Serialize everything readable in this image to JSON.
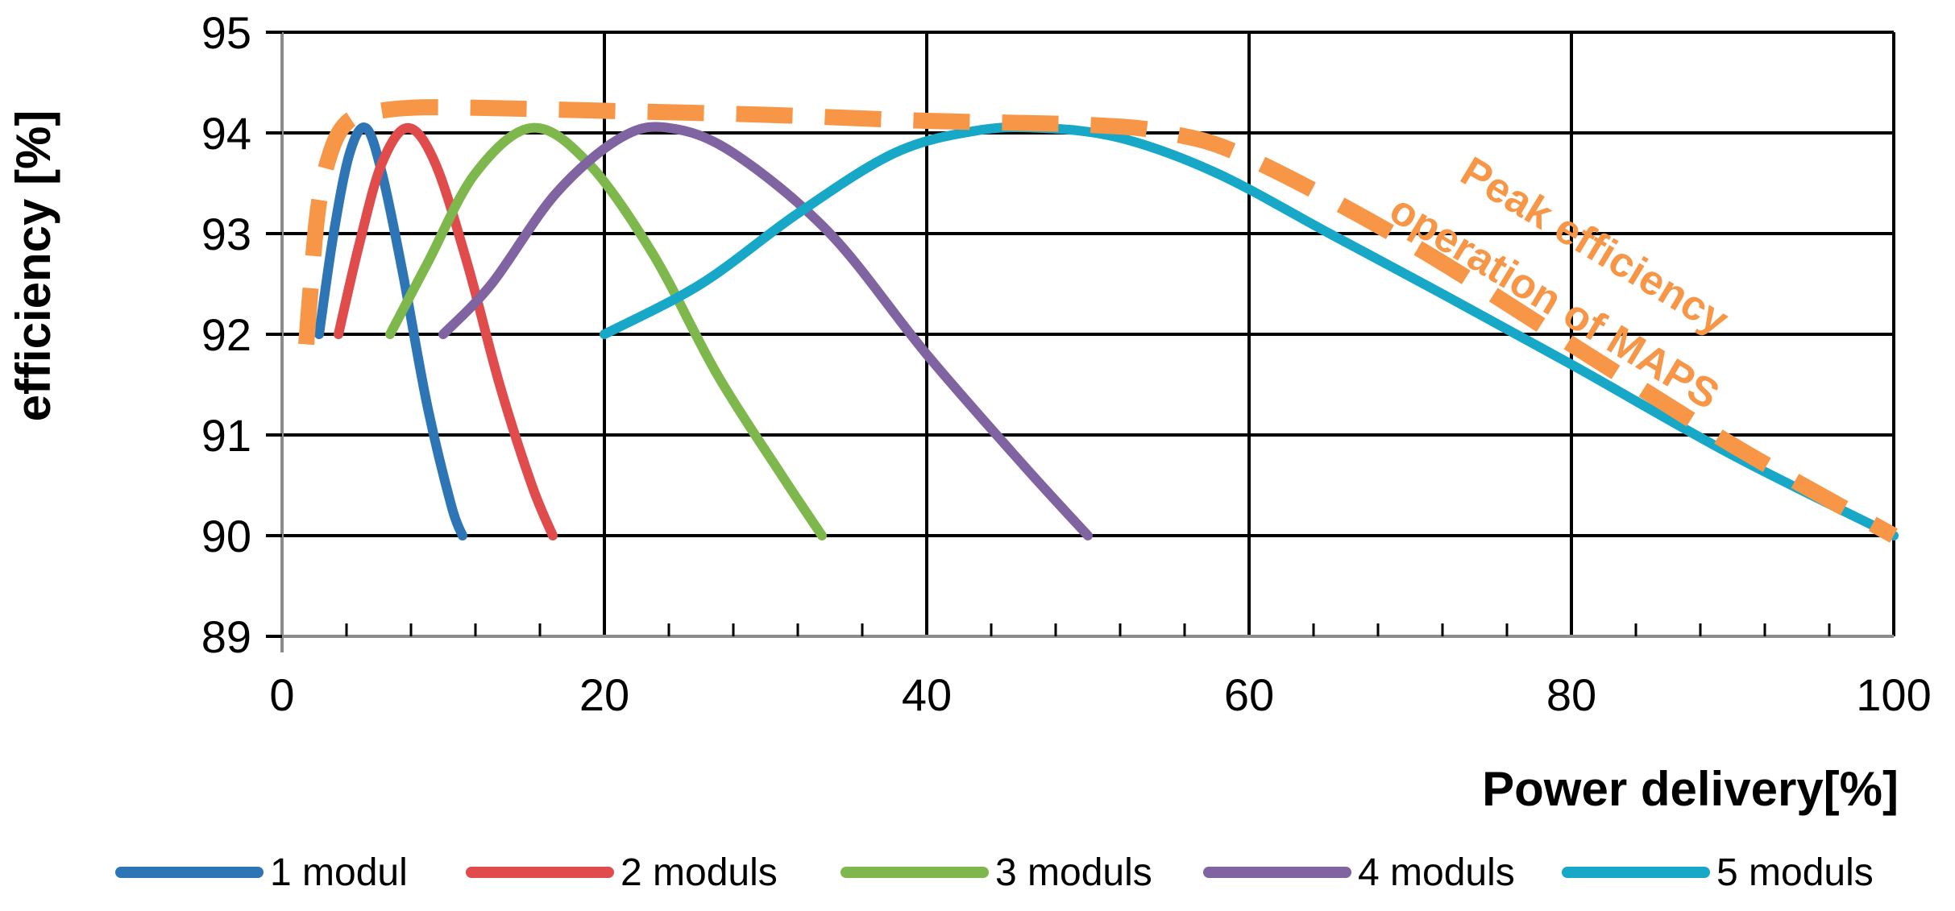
{
  "chart_data": {
    "type": "line",
    "title": "",
    "xlabel": "Power delivery[%]",
    "ylabel": "efficiency [%]",
    "xlim": [
      0,
      100
    ],
    "ylim": [
      89,
      95
    ],
    "x_ticks": [
      0,
      20,
      40,
      60,
      80,
      100
    ],
    "x_tick_labels": [
      "0",
      "20",
      "40",
      "60",
      "80",
      "100"
    ],
    "y_ticks": [
      89,
      90,
      91,
      92,
      93,
      94,
      95
    ],
    "y_tick_labels": [
      "89",
      "90",
      "91",
      "92",
      "93",
      "94",
      "95"
    ],
    "grid": true,
    "legend_position": "bottom",
    "series": [
      {
        "name": "1 modul",
        "color": "#2E75B6",
        "x": [
          2.3,
          3.2,
          4.2,
          5.2,
          6.2,
          7.5,
          9.0,
          10.5,
          11.2
        ],
        "y": [
          92.0,
          93.0,
          93.8,
          94.05,
          93.6,
          92.6,
          91.3,
          90.3,
          90.0
        ]
      },
      {
        "name": "2 moduls",
        "color": "#E04B4B",
        "x": [
          3.5,
          4.8,
          6.2,
          7.8,
          9.5,
          11.5,
          13.5,
          15.5,
          16.8
        ],
        "y": [
          92.0,
          92.9,
          93.7,
          94.05,
          93.7,
          92.7,
          91.5,
          90.5,
          90.0
        ]
      },
      {
        "name": "3 moduls",
        "color": "#7EB84D",
        "x": [
          6.7,
          9.0,
          12.0,
          15.5,
          19.0,
          23.0,
          27.0,
          31.0,
          33.5
        ],
        "y": [
          92.0,
          92.7,
          93.6,
          94.05,
          93.7,
          92.8,
          91.6,
          90.6,
          90.0
        ]
      },
      {
        "name": "4 moduls",
        "color": "#8064A2",
        "x": [
          10.0,
          13.0,
          17.0,
          21.0,
          24.0,
          28.0,
          34.0,
          40.0,
          46.0,
          50.0
        ],
        "y": [
          92.0,
          92.5,
          93.4,
          93.95,
          94.05,
          93.8,
          93.0,
          91.8,
          90.7,
          90.0
        ]
      },
      {
        "name": "5 moduls",
        "color": "#17A7C7",
        "x": [
          20.0,
          26.0,
          32.0,
          38.0,
          43.0,
          47.0,
          52.0,
          58.0,
          65.0,
          72.0,
          80.0,
          90.0,
          100.0
        ],
        "y": [
          92.0,
          92.5,
          93.2,
          93.8,
          94.02,
          94.05,
          93.95,
          93.6,
          93.0,
          92.4,
          91.7,
          90.8,
          90.0
        ]
      }
    ],
    "envelope": {
      "name": "Peak efficiency operation of MAPS",
      "color": "#F79646",
      "style": "dashed",
      "x": [
        1.5,
        2.2,
        3.0,
        4.0,
        5.5,
        8.0,
        12.0,
        20.0,
        30.0,
        40.0,
        50.0,
        55.0,
        60.0,
        70.0,
        80.0,
        90.0,
        100.0
      ],
      "y": [
        91.9,
        93.2,
        93.8,
        94.1,
        94.2,
        94.25,
        94.25,
        94.22,
        94.18,
        94.12,
        94.08,
        94.0,
        93.75,
        92.9,
        91.9,
        90.9,
        90.0
      ]
    },
    "annotation": {
      "lines": [
        "Peak efficiency",
        "operation of MAPS"
      ],
      "rotation_deg": 31
    }
  }
}
